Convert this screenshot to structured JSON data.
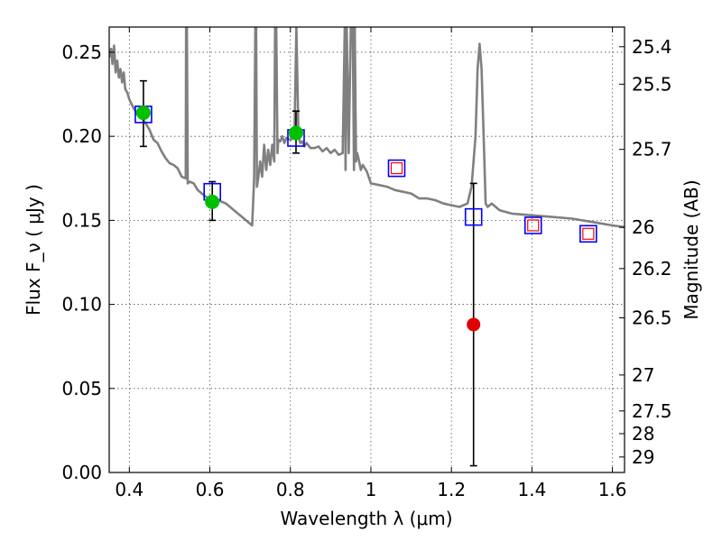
{
  "chart_data": {
    "type": "scatter",
    "xlabel": "Wavelength  λ (μm)",
    "ylabel": "Flux  F_ν  ( μJy )",
    "ylabel_right": "Magnitude (AB)",
    "xlim": [
      0.35,
      1.63
    ],
    "ylim": [
      0.0,
      0.265
    ],
    "x_ticks": [
      {
        "value": 0.4,
        "label": "0.4"
      },
      {
        "value": 0.6,
        "label": "0.6"
      },
      {
        "value": 0.8,
        "label": "0.8"
      },
      {
        "value": 1.0,
        "label": "1"
      },
      {
        "value": 1.2,
        "label": "1.2"
      },
      {
        "value": 1.4,
        "label": "1.4"
      },
      {
        "value": 1.6,
        "label": "1.6"
      }
    ],
    "y_ticks": [
      {
        "value": 0.0,
        "label": "0.00"
      },
      {
        "value": 0.05,
        "label": "0.05"
      },
      {
        "value": 0.1,
        "label": "0.10"
      },
      {
        "value": 0.15,
        "label": "0.15"
      },
      {
        "value": 0.2,
        "label": "0.20"
      },
      {
        "value": 0.25,
        "label": "0.25"
      }
    ],
    "right_ticks": [
      {
        "label": "25.4",
        "flux": 0.2533
      },
      {
        "label": "25.5",
        "flux": 0.231
      },
      {
        "label": "25.7",
        "flux": 0.1922
      },
      {
        "label": "26",
        "flux": 0.1458
      },
      {
        "label": "26.2",
        "flux": 0.1213
      },
      {
        "label": "26.5",
        "flux": 0.092
      },
      {
        "label": "27",
        "flux": 0.058
      },
      {
        "label": "27.5",
        "flux": 0.0366
      },
      {
        "label": "28",
        "flux": 0.0231
      },
      {
        "label": "29",
        "flux": 0.0092
      }
    ],
    "grid": true,
    "model_spectrum": {
      "color": "#808080",
      "x": [
        0.35,
        0.355,
        0.358,
        0.362,
        0.366,
        0.37,
        0.374,
        0.378,
        0.382,
        0.386,
        0.39,
        0.395,
        0.4,
        0.41,
        0.42,
        0.43,
        0.44,
        0.45,
        0.46,
        0.47,
        0.48,
        0.49,
        0.5,
        0.51,
        0.52,
        0.53,
        0.54,
        0.541,
        0.543,
        0.545,
        0.55,
        0.56,
        0.57,
        0.58,
        0.59,
        0.6,
        0.62,
        0.64,
        0.66,
        0.68,
        0.7,
        0.705,
        0.71,
        0.713,
        0.715,
        0.717,
        0.72,
        0.725,
        0.73,
        0.735,
        0.74,
        0.745,
        0.75,
        0.755,
        0.76,
        0.762,
        0.765,
        0.768,
        0.77,
        0.775,
        0.78,
        0.785,
        0.79,
        0.8,
        0.81,
        0.815,
        0.82,
        0.825,
        0.83,
        0.835,
        0.84,
        0.85,
        0.86,
        0.87,
        0.88,
        0.89,
        0.9,
        0.91,
        0.92,
        0.93,
        0.935,
        0.937,
        0.94,
        0.945,
        0.95,
        0.955,
        0.958,
        0.96,
        0.963,
        0.966,
        0.97,
        0.975,
        0.98,
        0.99,
        1.0,
        1.02,
        1.04,
        1.06,
        1.08,
        1.1,
        1.12,
        1.14,
        1.16,
        1.18,
        1.2,
        1.22,
        1.24,
        1.25,
        1.26,
        1.265,
        1.27,
        1.275,
        1.28,
        1.285,
        1.29,
        1.3,
        1.32,
        1.35,
        1.4,
        1.45,
        1.5,
        1.55,
        1.6,
        1.63
      ],
      "y": [
        0.247,
        0.252,
        0.243,
        0.254,
        0.238,
        0.245,
        0.235,
        0.24,
        0.232,
        0.238,
        0.228,
        0.226,
        0.222,
        0.217,
        0.213,
        0.211,
        0.208,
        0.204,
        0.198,
        0.196,
        0.191,
        0.187,
        0.184,
        0.183,
        0.181,
        0.176,
        0.175,
        0.265,
        0.265,
        0.172,
        0.173,
        0.172,
        0.168,
        0.166,
        0.164,
        0.163,
        0.162,
        0.16,
        0.156,
        0.152,
        0.148,
        0.147,
        0.175,
        0.265,
        0.265,
        0.17,
        0.175,
        0.185,
        0.176,
        0.195,
        0.18,
        0.192,
        0.183,
        0.195,
        0.185,
        0.265,
        0.265,
        0.19,
        0.198,
        0.197,
        0.2,
        0.196,
        0.199,
        0.198,
        0.199,
        0.265,
        0.2,
        0.196,
        0.197,
        0.194,
        0.196,
        0.193,
        0.193,
        0.194,
        0.191,
        0.193,
        0.19,
        0.192,
        0.189,
        0.19,
        0.265,
        0.18,
        0.265,
        0.19,
        0.265,
        0.265,
        0.18,
        0.265,
        0.185,
        0.19,
        0.186,
        0.18,
        0.183,
        0.179,
        0.172,
        0.171,
        0.17,
        0.168,
        0.167,
        0.166,
        0.163,
        0.163,
        0.162,
        0.16,
        0.159,
        0.158,
        0.16,
        0.17,
        0.2,
        0.24,
        0.255,
        0.24,
        0.2,
        0.16,
        0.158,
        0.16,
        0.156,
        0.154,
        0.153,
        0.152,
        0.151,
        0.149,
        0.147,
        0.146
      ]
    },
    "model_photometry": {
      "marker": "open-square",
      "color": "#0000ff",
      "points": [
        {
          "x": 0.435,
          "y": 0.213
        },
        {
          "x": 0.606,
          "y": 0.167
        },
        {
          "x": 0.814,
          "y": 0.199
        },
        {
          "x": 1.064,
          "y": 0.181
        },
        {
          "x": 1.255,
          "y": 0.152
        },
        {
          "x": 1.403,
          "y": 0.147
        },
        {
          "x": 1.54,
          "y": 0.142
        }
      ]
    },
    "detections": {
      "marker": "filled-circle",
      "color": "#00c000",
      "points": [
        {
          "x": 0.435,
          "y": 0.214,
          "yerr_low": 0.194,
          "yerr_high": 0.233
        },
        {
          "x": 0.606,
          "y": 0.161,
          "yerr_low": 0.15,
          "yerr_high": 0.173
        },
        {
          "x": 0.814,
          "y": 0.202,
          "yerr_low": 0.19,
          "yerr_high": 0.215
        }
      ]
    },
    "low_snr": {
      "marker": "filled-circle",
      "color": "#e00000",
      "points": [
        {
          "x": 1.255,
          "y": 0.088,
          "yerr_low": 0.004,
          "yerr_high": 0.172
        }
      ]
    },
    "upper_bands": {
      "marker": "open-square-small",
      "color": "#ff0000",
      "points": [
        {
          "x": 1.064,
          "y": 0.181
        },
        {
          "x": 1.403,
          "y": 0.147
        },
        {
          "x": 1.54,
          "y": 0.142
        }
      ]
    }
  }
}
